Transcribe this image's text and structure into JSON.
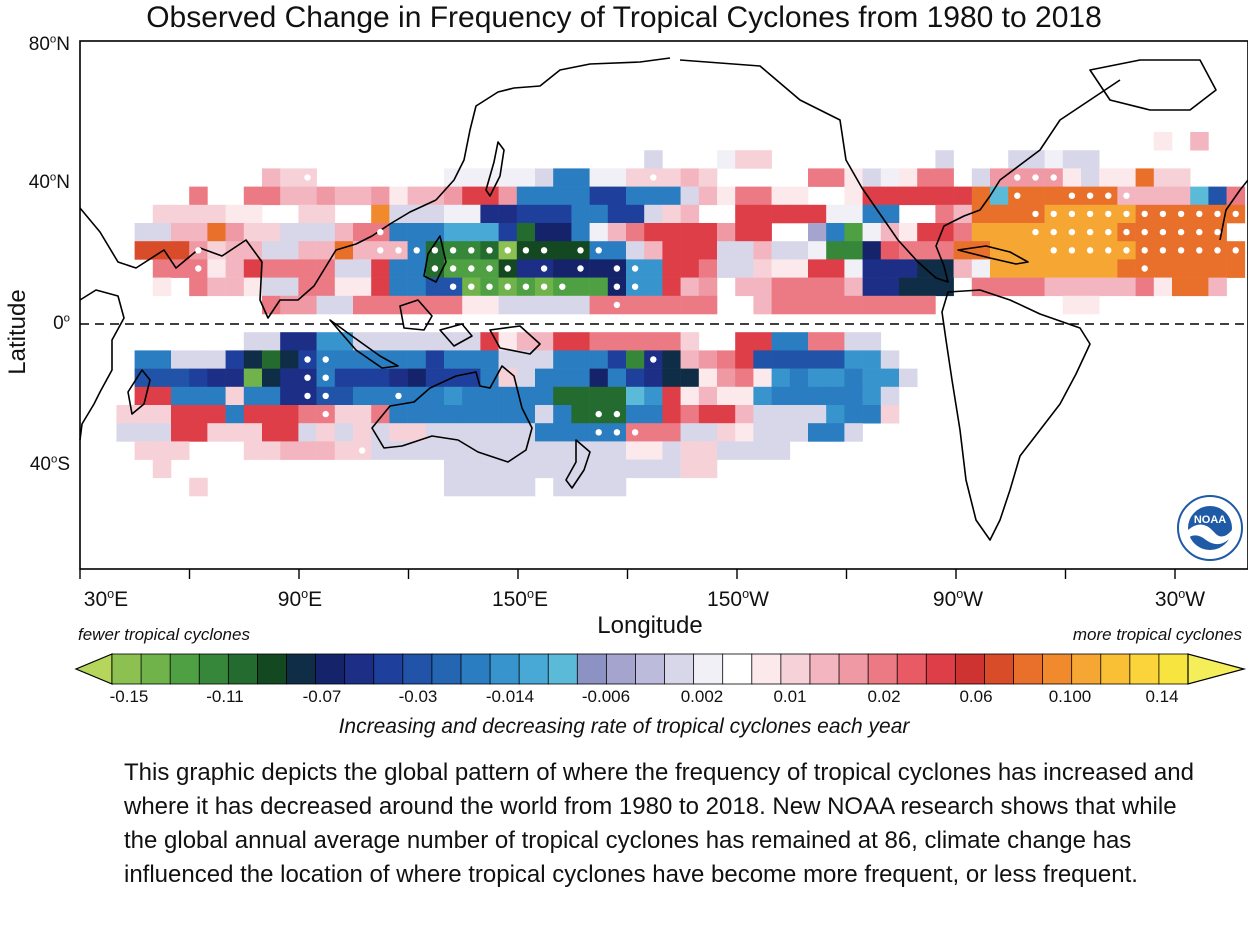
{
  "title": "Observed Change in Frequency of Tropical Cyclones from 1980 to 2018",
  "xlabel": "Longitude",
  "ylabel": "Latitude",
  "lat_ticks": [
    {
      "deg": "80",
      "hem": "N",
      "lat": 80
    },
    {
      "deg": "40",
      "hem": "N",
      "lat": 40
    },
    {
      "deg": "0",
      "hem": "",
      "lat": 0
    },
    {
      "deg": "40",
      "hem": "S",
      "lat": -40
    }
  ],
  "lon_ticks": [
    {
      "deg": "30",
      "hem": "E",
      "lon": 30
    },
    {
      "deg": "90",
      "hem": "E",
      "lon": 90
    },
    {
      "deg": "150",
      "hem": "E",
      "lon": 150
    },
    {
      "deg": "150",
      "hem": "W",
      "lon": 210
    },
    {
      "deg": "90",
      "hem": "W",
      "lon": 270
    },
    {
      "deg": "30",
      "hem": "W",
      "lon": 330
    }
  ],
  "colorbar": {
    "left_label": "fewer tropical cyclones",
    "right_label": "more tropical cyclones",
    "title": "Increasing and decreasing rate of tropical cyclones each year",
    "tick_labels": [
      "-0.15",
      "-0.11",
      "-0.07",
      "-0.03",
      "-0.014",
      "-0.006",
      "0.002",
      "0.01",
      "0.02",
      "0.06",
      "0.100",
      "0.14"
    ],
    "colors": [
      "#8cc152",
      "#6fb34a",
      "#4fa043",
      "#36873a",
      "#236b2f",
      "#134821",
      "#0f2d46",
      "#15236a",
      "#1c2e86",
      "#1f3f9c",
      "#2153a8",
      "#2466b2",
      "#2a7dc0",
      "#3794cc",
      "#48a8d6",
      "#5cbad9",
      "#8c93c4",
      "#a5a4ce",
      "#bdbbdc",
      "#d8d7ea",
      "#f1f0f6",
      "#ffffff",
      "#fbe9ec",
      "#f6d1d7",
      "#f3b6c0",
      "#ef99a4",
      "#ec7a84",
      "#e85a64",
      "#de3e47",
      "#cf3331",
      "#d84c2a",
      "#e8702a",
      "#f08a2c",
      "#f6a632",
      "#f9bf35",
      "#fad43a",
      "#f7e43e"
    ],
    "end_left": "#b5d65a",
    "end_right": "#f3ee5a"
  },
  "caption": "This graphic depicts the global pattern of where the frequency of tropical cyclones has increased and where it has decreased around the world from 1980 to 2018. New NOAA research shows that while the global annual average number of tropical cyclones has remained at 86, climate change has influenced the location of where tropical cyclones have become more frequent, or less frequent.",
  "logo": {
    "text": "NOAA",
    "color": "#1f5aa6"
  },
  "grid": {
    "lon_start": 30,
    "lat_start": 80,
    "cell_deg": 5,
    "cols": 53,
    "rows": 30,
    "rows_data": [
      "",
      "",
      "",
      "",
      "",
      "...........................................................w.f",
      "...............................B...rpo.........q...qBAqq",
      "..........fpp.......rrAAABCCrrpppfp.....eebBAbee.qccccbBbbgpp",
      "......e..eeffcffcbffcddcCCCCHHCCCqfbeebb..bddddddgFggggggffffFEe",
      "....ppppbb..pp..nqqqAAIIHHHCCHHqpf..dddddrrCC..efggggjjjjjgggggg",
      "...qqffgcpoBqqfeeCCCQQQHLJJCAfeddddcdd..xCNAfbddejjjjjjjjgggggg",
      "...hhhcpffqqffgfffCTWWTPOOOOCCqfdddqqfBBAGWJyeeeggjjjjjjjjgggggg",
      "....eeebfdeeeeqqdCCTRRROIIJJJJDDddeBBpbbddrIIIKKfrjjjjjjjggggggg",
      "....b.effbqqeebbdCCEEMNMNMNNNJDDdfc.ffeeeefIIKKK.eeeefffffebggf",
      "..........eccqqeeeeeebbqqqqqeeeeeee..feeeeeeeee.......bb",
      "",
      ".........BBIIDDBBBBBBBdbffddeeeeep..ddCCeeqq",
      "...CCBBqHKLKHCCCCCCHCCCqBBCCCHGIKfcedEEEEEDDq",
      "...EEEHIIMKIICHHHIJHHHCpqCCCJCHIKKbcebDCDDCDDq",
      "...ddCCCpCCIIEECCCCCDCCCCCTTTTFDdbfbbDCCCCCDq",
      "..pppdddCdddeeppeCCCCCCCCqCTTTCCdeddfqqqqDCCp",
      "..qqqddppoddqpqpqppqqqqqqCCCCCeeeqqpbqqqCCq",
      "...ppp...ppfffppqqqqqqqqqqqqBqbbqppqqqq",
      "....p...............qqqqqqqqqqqqqpp",
      "......p.............qqqqq.qqqq",
      "",
      "",
      "",
      ""
    ],
    "dots": [
      [
        12,
        7
      ],
      [
        16,
        7
      ],
      [
        29,
        6
      ],
      [
        31,
        7
      ],
      [
        6,
        11
      ],
      [
        6,
        12
      ],
      [
        16,
        10
      ],
      [
        16,
        11
      ],
      [
        17,
        11
      ],
      [
        18,
        11
      ],
      [
        19,
        11
      ],
      [
        20,
        11
      ],
      [
        21,
        11
      ],
      [
        22,
        11
      ],
      [
        23,
        11
      ],
      [
        24,
        11
      ],
      [
        25,
        11
      ],
      [
        27,
        11
      ],
      [
        28,
        11
      ],
      [
        19,
        12
      ],
      [
        20,
        12
      ],
      [
        21,
        12
      ],
      [
        22,
        12
      ],
      [
        23,
        12
      ],
      [
        25,
        12
      ],
      [
        27,
        12
      ],
      [
        29,
        12
      ],
      [
        30,
        12
      ],
      [
        20,
        13
      ],
      [
        21,
        13
      ],
      [
        22,
        13
      ],
      [
        23,
        13
      ],
      [
        24,
        13
      ],
      [
        25,
        13
      ],
      [
        26,
        13
      ],
      [
        29,
        13
      ],
      [
        30,
        13
      ],
      [
        29,
        14
      ],
      [
        50,
        6
      ],
      [
        51,
        7
      ],
      [
        52,
        7
      ],
      [
        53,
        7
      ],
      [
        54,
        8
      ],
      [
        55,
        8
      ],
      [
        56,
        8
      ],
      [
        57,
        8
      ],
      [
        51,
        8
      ],
      [
        52,
        9
      ],
      [
        53,
        9
      ],
      [
        54,
        9
      ],
      [
        55,
        9
      ],
      [
        56,
        9
      ],
      [
        57,
        9
      ],
      [
        58,
        9
      ],
      [
        59,
        9
      ],
      [
        60,
        9
      ],
      [
        61,
        9
      ],
      [
        62,
        9
      ],
      [
        63,
        9
      ],
      [
        64,
        9
      ],
      [
        65,
        9
      ],
      [
        66,
        9
      ],
      [
        67,
        9
      ],
      [
        68,
        9
      ],
      [
        52,
        10
      ],
      [
        53,
        10
      ],
      [
        54,
        10
      ],
      [
        55,
        10
      ],
      [
        56,
        10
      ],
      [
        57,
        10
      ],
      [
        58,
        10
      ],
      [
        59,
        10
      ],
      [
        60,
        10
      ],
      [
        61,
        10
      ],
      [
        62,
        10
      ],
      [
        63,
        10
      ],
      [
        64,
        10
      ],
      [
        65,
        10
      ],
      [
        66,
        10
      ],
      [
        67,
        10
      ],
      [
        68,
        10
      ],
      [
        69,
        10
      ],
      [
        53,
        11
      ],
      [
        54,
        11
      ],
      [
        55,
        11
      ],
      [
        56,
        11
      ],
      [
        57,
        11
      ],
      [
        58,
        11
      ],
      [
        59,
        11
      ],
      [
        60,
        11
      ],
      [
        61,
        11
      ],
      [
        62,
        11
      ],
      [
        63,
        11
      ],
      [
        64,
        11
      ],
      [
        65,
        11
      ],
      [
        66,
        11
      ],
      [
        67,
        11
      ],
      [
        68,
        11
      ],
      [
        69,
        11
      ],
      [
        58,
        12
      ],
      [
        12,
        17
      ],
      [
        13,
        17
      ],
      [
        12,
        18
      ],
      [
        13,
        18
      ],
      [
        12,
        19
      ],
      [
        13,
        19
      ],
      [
        13,
        20
      ],
      [
        17,
        19
      ],
      [
        28,
        20
      ],
      [
        28,
        21
      ],
      [
        29,
        20
      ],
      [
        29,
        21
      ],
      [
        30,
        21
      ],
      [
        31,
        17
      ],
      [
        15,
        22
      ],
      [
        15,
        23
      ],
      [
        15,
        24
      ]
    ]
  }
}
